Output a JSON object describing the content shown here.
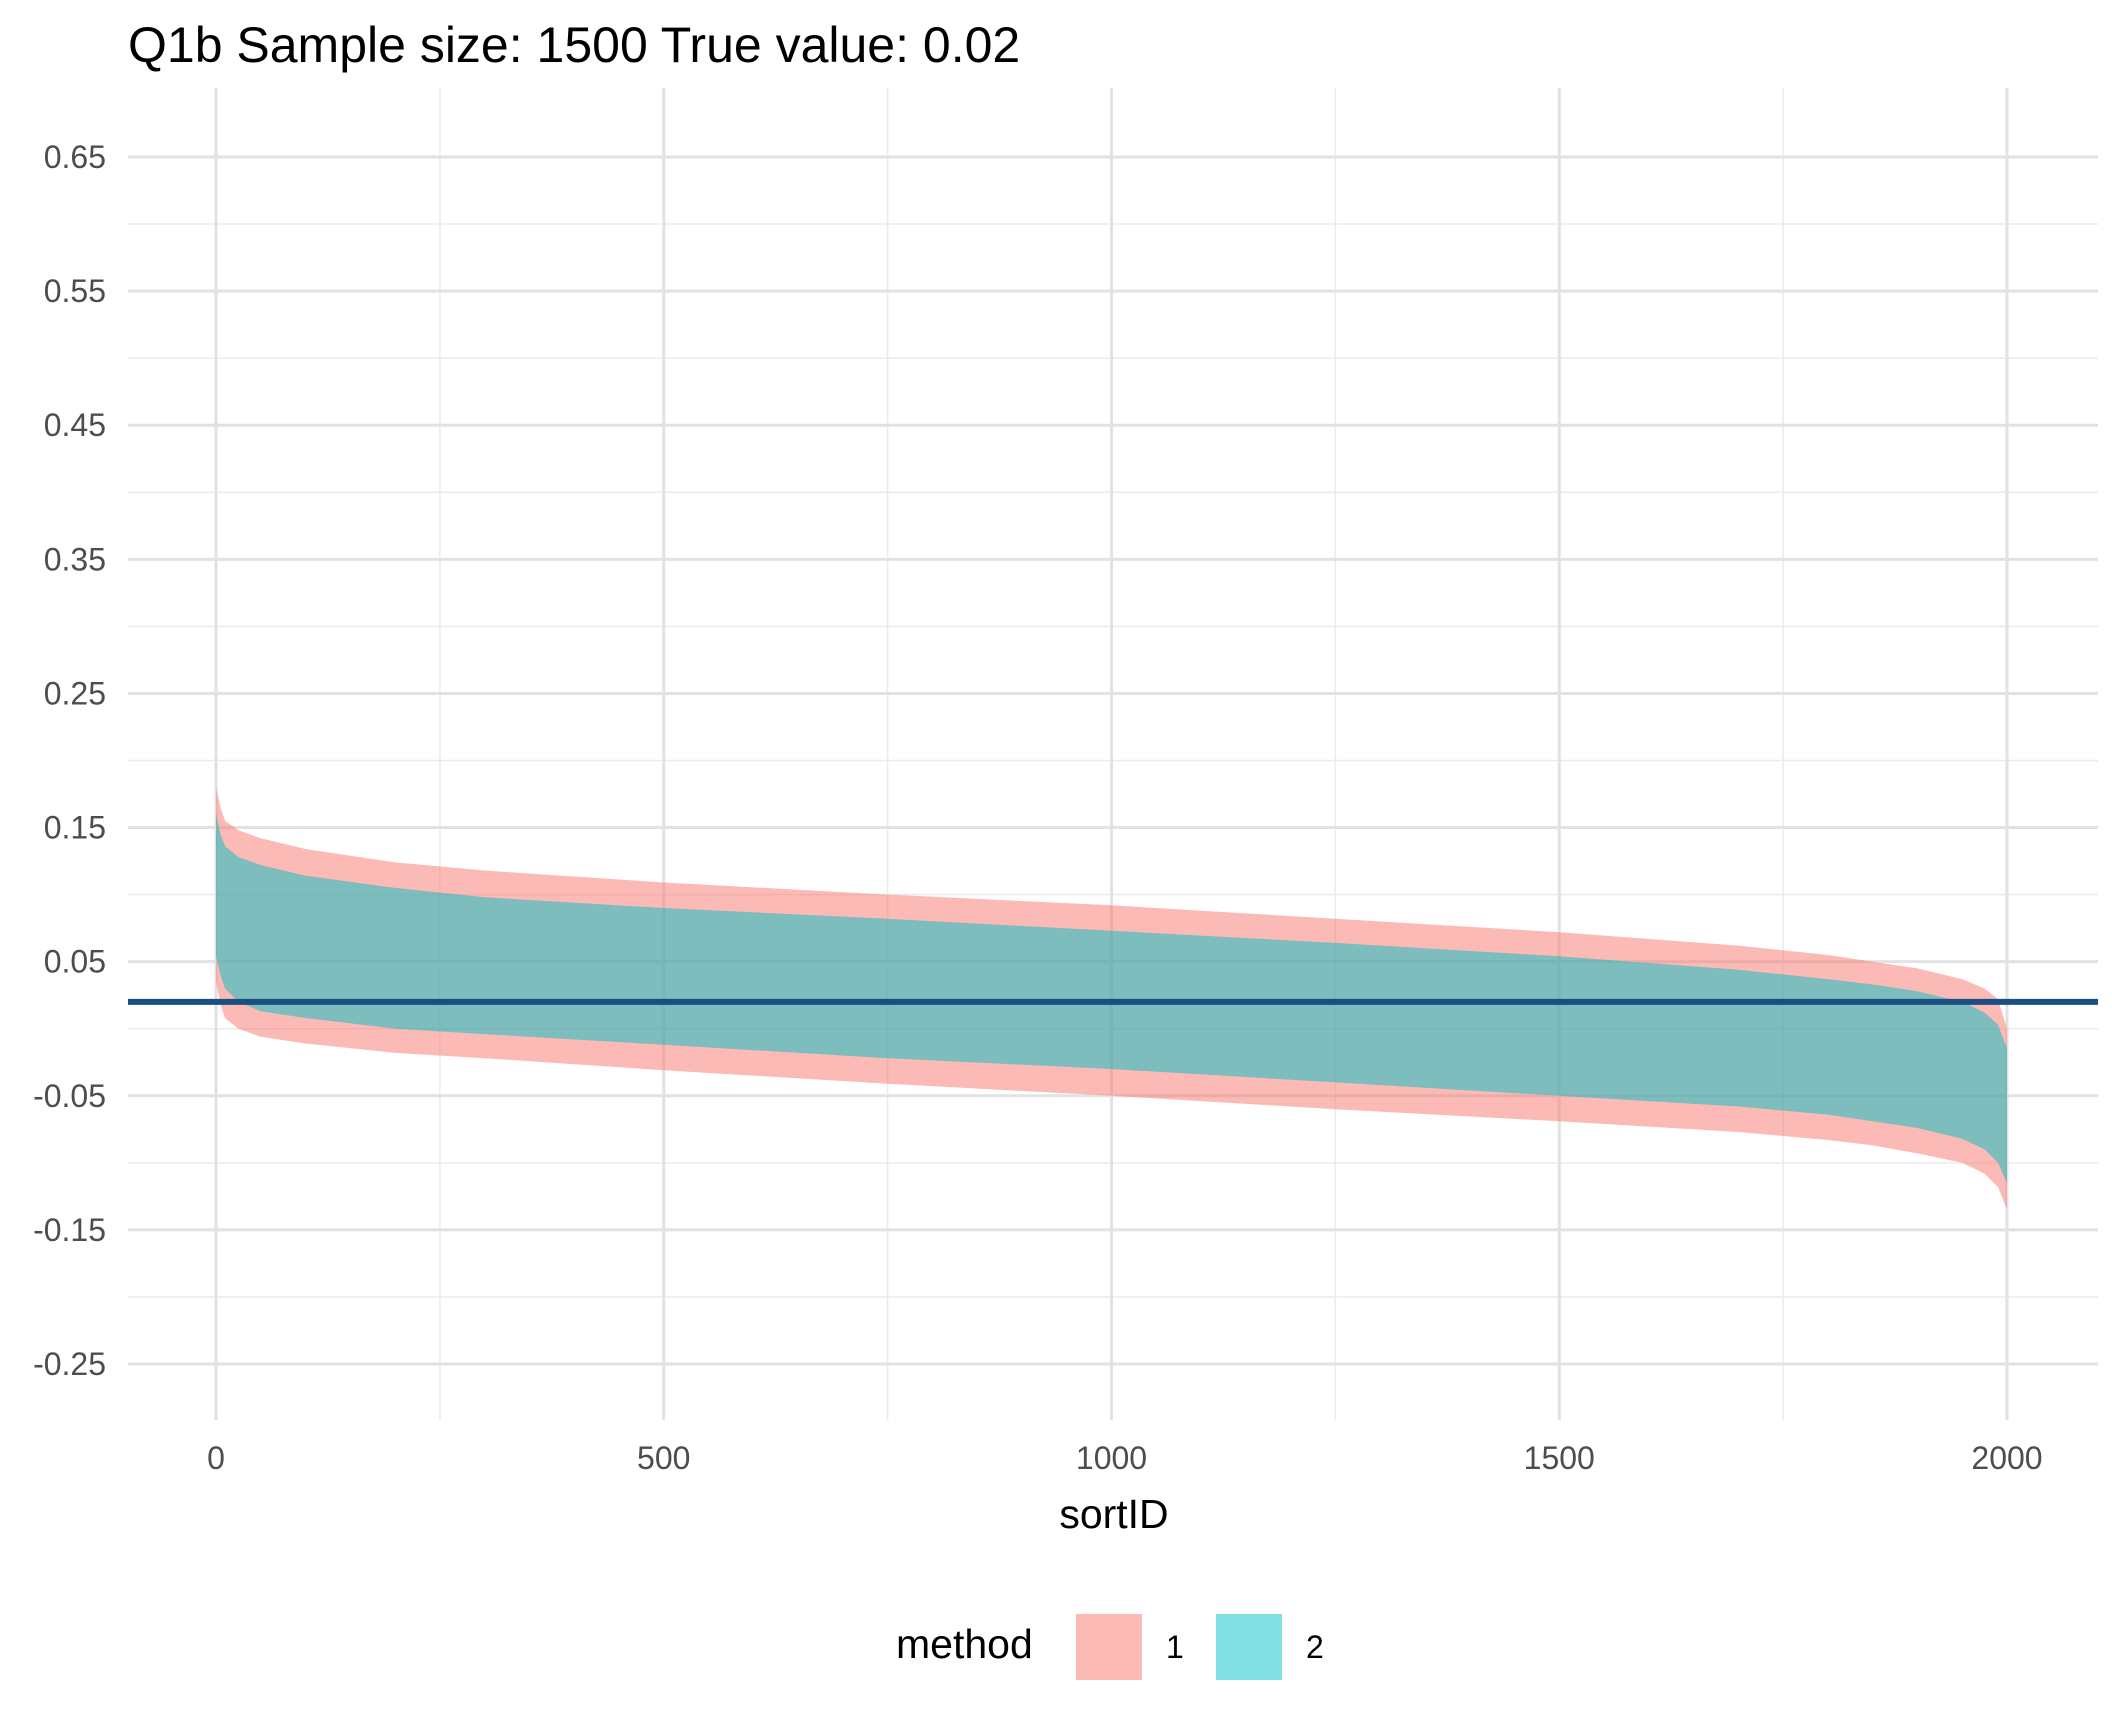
{
  "chart_data": {
    "type": "area",
    "title": "Q1b  Sample size: 1500  True value: 0.02",
    "xlabel": "sortID",
    "ylabel": "",
    "xlim": [
      -100,
      2100
    ],
    "ylim": [
      -0.28,
      0.68
    ],
    "x_ticks": [
      0,
      500,
      1000,
      1500,
      2000
    ],
    "x_tick_labels": [
      "0",
      "500",
      "1000",
      "1500",
      "2000"
    ],
    "y_ticks": [
      -0.25,
      -0.15,
      -0.05,
      0.05,
      0.15,
      0.25,
      0.35,
      0.45,
      0.55,
      0.65
    ],
    "y_tick_labels": [
      "-0.25",
      "-0.15",
      "-0.05",
      "0.05",
      "0.15",
      "0.25",
      "0.35",
      "0.45",
      "0.55",
      "0.65"
    ],
    "grid": true,
    "legend": {
      "title": "method",
      "position": "bottom",
      "entries": [
        {
          "label": "1",
          "color": "#F8766D"
        },
        {
          "label": "2",
          "color": "#00BFC4"
        }
      ]
    },
    "reference_line": {
      "y": 0.02,
      "color": "#1B4F82"
    },
    "series": [
      {
        "name": "1",
        "color": "#F8766D",
        "opacity": 0.5,
        "x": [
          0,
          5,
          10,
          25,
          50,
          100,
          200,
          300,
          500,
          750,
          1000,
          1250,
          1500,
          1700,
          1800,
          1850,
          1900,
          1950,
          1975,
          1990,
          2000
        ],
        "upper": [
          0.18,
          0.165,
          0.155,
          0.148,
          0.142,
          0.134,
          0.124,
          0.118,
          0.109,
          0.1,
          0.092,
          0.082,
          0.072,
          0.062,
          0.055,
          0.05,
          0.045,
          0.037,
          0.03,
          0.022,
          0.0
        ],
        "lower": [
          0.035,
          0.018,
          0.008,
          0.0,
          -0.006,
          -0.011,
          -0.018,
          -0.022,
          -0.031,
          -0.041,
          -0.05,
          -0.06,
          -0.069,
          -0.077,
          -0.083,
          -0.087,
          -0.093,
          -0.1,
          -0.108,
          -0.118,
          -0.135
        ]
      },
      {
        "name": "2",
        "color": "#00BFC4",
        "opacity": 0.5,
        "x": [
          0,
          5,
          10,
          25,
          50,
          100,
          200,
          300,
          500,
          750,
          1000,
          1250,
          1500,
          1700,
          1800,
          1850,
          1900,
          1950,
          1975,
          1990,
          2000
        ],
        "upper": [
          0.16,
          0.145,
          0.136,
          0.128,
          0.122,
          0.114,
          0.105,
          0.098,
          0.09,
          0.082,
          0.073,
          0.064,
          0.054,
          0.044,
          0.037,
          0.033,
          0.028,
          0.02,
          0.012,
          0.003,
          -0.015
        ],
        "lower": [
          0.055,
          0.04,
          0.03,
          0.02,
          0.013,
          0.008,
          0.0,
          -0.004,
          -0.012,
          -0.022,
          -0.03,
          -0.04,
          -0.05,
          -0.058,
          -0.064,
          -0.069,
          -0.074,
          -0.082,
          -0.09,
          -0.1,
          -0.115
        ]
      }
    ]
  }
}
